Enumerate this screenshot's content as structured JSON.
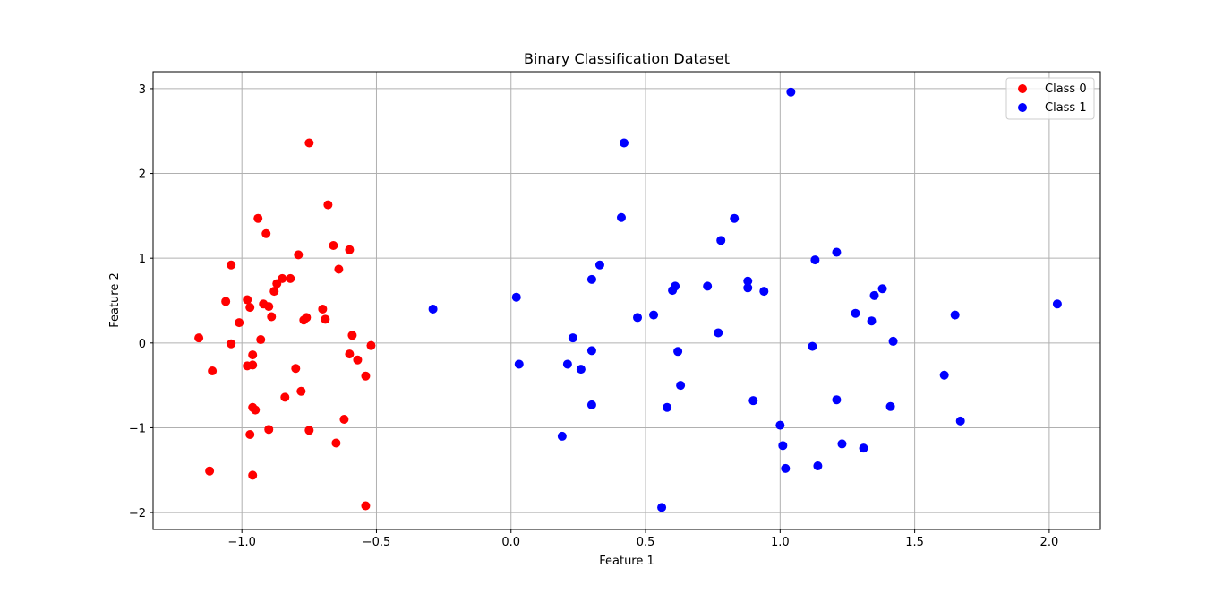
{
  "chart_data": {
    "type": "scatter",
    "title": "Binary Classification Dataset",
    "xlabel": "Feature 1",
    "ylabel": "Feature 2",
    "xlim": [
      -1.33,
      2.19
    ],
    "ylim": [
      -2.2,
      3.2
    ],
    "xticks": [
      -1.0,
      -0.5,
      0.0,
      0.5,
      1.0,
      1.5,
      2.0
    ],
    "xtick_labels": [
      "−1.0",
      "−0.5",
      "0.0",
      "0.5",
      "1.0",
      "1.5",
      "2.0"
    ],
    "yticks": [
      -2,
      -1,
      0,
      1,
      2,
      3
    ],
    "ytick_labels": [
      "−2",
      "−1",
      "0",
      "1",
      "2",
      "3"
    ],
    "grid": true,
    "legend_position": "top-right",
    "series": [
      {
        "name": "Class 0",
        "color": "#ff0000",
        "points": [
          [
            -0.75,
            2.36
          ],
          [
            -0.68,
            1.63
          ],
          [
            -0.94,
            1.47
          ],
          [
            -0.91,
            1.29
          ],
          [
            -0.66,
            1.15
          ],
          [
            -0.6,
            1.1
          ],
          [
            -0.79,
            1.04
          ],
          [
            -1.04,
            0.92
          ],
          [
            -0.64,
            0.87
          ],
          [
            -0.85,
            0.76
          ],
          [
            -0.82,
            0.76
          ],
          [
            -0.87,
            0.7
          ],
          [
            -0.88,
            0.61
          ],
          [
            -0.98,
            0.51
          ],
          [
            -1.06,
            0.49
          ],
          [
            -0.92,
            0.46
          ],
          [
            -0.9,
            0.43
          ],
          [
            -0.97,
            0.42
          ],
          [
            -0.7,
            0.4
          ],
          [
            -0.89,
            0.31
          ],
          [
            -0.76,
            0.3
          ],
          [
            -0.77,
            0.27
          ],
          [
            -0.69,
            0.28
          ],
          [
            -1.01,
            0.24
          ],
          [
            -0.59,
            0.09
          ],
          [
            -1.16,
            0.06
          ],
          [
            -0.93,
            0.04
          ],
          [
            -1.04,
            -0.01
          ],
          [
            -0.52,
            -0.03
          ],
          [
            -0.6,
            -0.13
          ],
          [
            -0.96,
            -0.14
          ],
          [
            -0.57,
            -0.2
          ],
          [
            -0.98,
            -0.27
          ],
          [
            -0.96,
            -0.26
          ],
          [
            -0.8,
            -0.3
          ],
          [
            -1.11,
            -0.33
          ],
          [
            -0.54,
            -0.39
          ],
          [
            -0.78,
            -0.57
          ],
          [
            -0.84,
            -0.64
          ],
          [
            -0.96,
            -0.76
          ],
          [
            -0.95,
            -0.79
          ],
          [
            -0.62,
            -0.9
          ],
          [
            -0.9,
            -1.02
          ],
          [
            -0.75,
            -1.03
          ],
          [
            -0.97,
            -1.08
          ],
          [
            -0.65,
            -1.18
          ],
          [
            -1.12,
            -1.51
          ],
          [
            -0.96,
            -1.56
          ],
          [
            -0.54,
            -1.92
          ]
        ]
      },
      {
        "name": "Class 1",
        "color": "#0000ff",
        "points": [
          [
            1.04,
            2.96
          ],
          [
            0.42,
            2.36
          ],
          [
            0.41,
            1.48
          ],
          [
            0.83,
            1.47
          ],
          [
            0.78,
            1.21
          ],
          [
            1.21,
            1.07
          ],
          [
            1.13,
            0.98
          ],
          [
            0.33,
            0.92
          ],
          [
            0.3,
            0.75
          ],
          [
            0.88,
            0.73
          ],
          [
            0.61,
            0.67
          ],
          [
            0.73,
            0.67
          ],
          [
            0.88,
            0.65
          ],
          [
            0.6,
            0.62
          ],
          [
            1.38,
            0.64
          ],
          [
            0.94,
            0.61
          ],
          [
            1.35,
            0.56
          ],
          [
            0.02,
            0.54
          ],
          [
            -0.29,
            0.4
          ],
          [
            1.28,
            0.35
          ],
          [
            0.53,
            0.33
          ],
          [
            1.65,
            0.33
          ],
          [
            0.47,
            0.3
          ],
          [
            1.34,
            0.26
          ],
          [
            2.03,
            0.46
          ],
          [
            0.77,
            0.12
          ],
          [
            0.23,
            0.06
          ],
          [
            1.42,
            0.02
          ],
          [
            1.12,
            -0.04
          ],
          [
            0.3,
            -0.09
          ],
          [
            0.62,
            -0.1
          ],
          [
            0.03,
            -0.25
          ],
          [
            0.21,
            -0.25
          ],
          [
            0.26,
            -0.31
          ],
          [
            1.61,
            -0.38
          ],
          [
            0.63,
            -0.5
          ],
          [
            0.9,
            -0.68
          ],
          [
            1.21,
            -0.67
          ],
          [
            0.3,
            -0.73
          ],
          [
            0.58,
            -0.76
          ],
          [
            1.41,
            -0.75
          ],
          [
            1.67,
            -0.92
          ],
          [
            1.0,
            -0.97
          ],
          [
            0.19,
            -1.1
          ],
          [
            1.23,
            -1.19
          ],
          [
            1.01,
            -1.21
          ],
          [
            1.31,
            -1.24
          ],
          [
            1.14,
            -1.45
          ],
          [
            1.02,
            -1.48
          ],
          [
            0.56,
            -1.94
          ]
        ]
      }
    ]
  }
}
